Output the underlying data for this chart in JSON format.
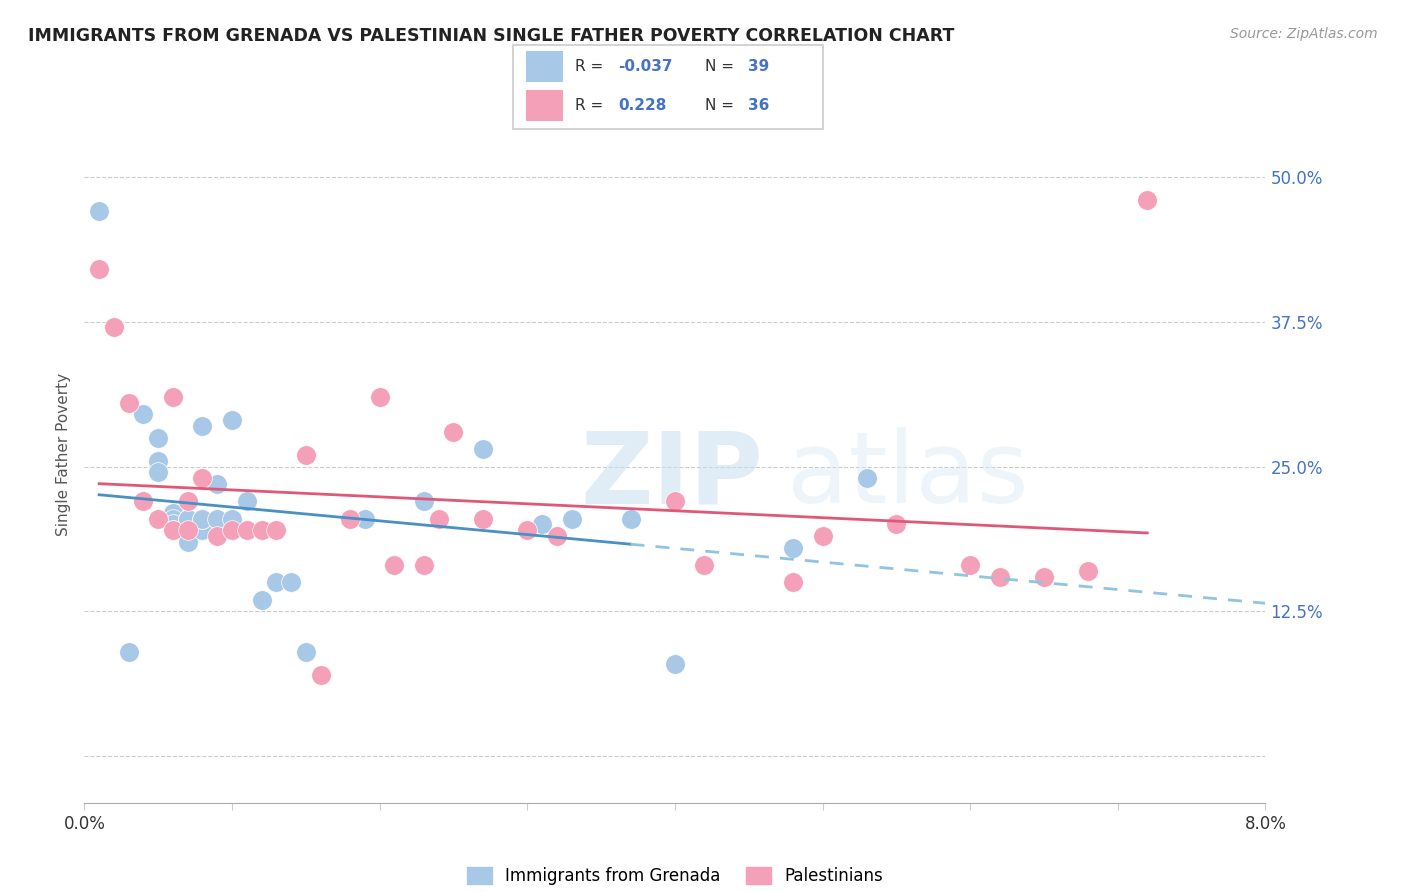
{
  "title": "IMMIGRANTS FROM GRENADA VS PALESTINIAN SINGLE FATHER POVERTY CORRELATION CHART",
  "source": "Source: ZipAtlas.com",
  "ylabel": "Single Father Poverty",
  "y_ticks": [
    0.0,
    0.125,
    0.25,
    0.375,
    0.5
  ],
  "y_tick_labels": [
    "",
    "12.5%",
    "25.0%",
    "37.5%",
    "50.0%"
  ],
  "x_range": [
    0.0,
    0.08
  ],
  "y_range": [
    -0.04,
    0.56
  ],
  "color_blue": "#a8c8e8",
  "color_pink": "#f4a0b8",
  "line_blue_solid": "#4a90c4",
  "line_blue_dash": "#90c4e0",
  "line_pink": "#e05878",
  "grenada_x": [
    0.001,
    0.003,
    0.004,
    0.005,
    0.005,
    0.005,
    0.006,
    0.006,
    0.006,
    0.006,
    0.007,
    0.007,
    0.007,
    0.007,
    0.007,
    0.008,
    0.008,
    0.008,
    0.008,
    0.009,
    0.009,
    0.01,
    0.01,
    0.011,
    0.012,
    0.013,
    0.014,
    0.015,
    0.018,
    0.019,
    0.021,
    0.023,
    0.027,
    0.031,
    0.033,
    0.037,
    0.04,
    0.048,
    0.053
  ],
  "grenada_y": [
    0.47,
    0.09,
    0.295,
    0.275,
    0.255,
    0.245,
    0.21,
    0.205,
    0.2,
    0.195,
    0.205,
    0.205,
    0.195,
    0.185,
    0.205,
    0.285,
    0.195,
    0.205,
    0.205,
    0.235,
    0.205,
    0.29,
    0.205,
    0.22,
    0.135,
    0.15,
    0.15,
    0.09,
    0.205,
    0.205,
    0.165,
    0.22,
    0.265,
    0.2,
    0.205,
    0.205,
    0.08,
    0.18,
    0.24
  ],
  "palestinians_x": [
    0.001,
    0.002,
    0.003,
    0.004,
    0.005,
    0.006,
    0.006,
    0.007,
    0.007,
    0.008,
    0.009,
    0.01,
    0.011,
    0.012,
    0.013,
    0.015,
    0.016,
    0.018,
    0.02,
    0.021,
    0.023,
    0.024,
    0.025,
    0.027,
    0.03,
    0.032,
    0.04,
    0.042,
    0.048,
    0.05,
    0.055,
    0.06,
    0.062,
    0.065,
    0.068,
    0.072
  ],
  "palestinians_y": [
    0.42,
    0.37,
    0.305,
    0.22,
    0.205,
    0.31,
    0.195,
    0.22,
    0.195,
    0.24,
    0.19,
    0.195,
    0.195,
    0.195,
    0.195,
    0.26,
    0.07,
    0.205,
    0.31,
    0.165,
    0.165,
    0.205,
    0.28,
    0.205,
    0.195,
    0.19,
    0.22,
    0.165,
    0.15,
    0.19,
    0.2,
    0.165,
    0.155,
    0.155,
    0.16,
    0.48
  ],
  "watermark_zip": "ZIP",
  "watermark_atlas": "atlas",
  "legend_text": [
    {
      "r": "R = -0.037",
      "n": "N = 39"
    },
    {
      "r": "R =  0.228",
      "n": "N = 36"
    }
  ]
}
